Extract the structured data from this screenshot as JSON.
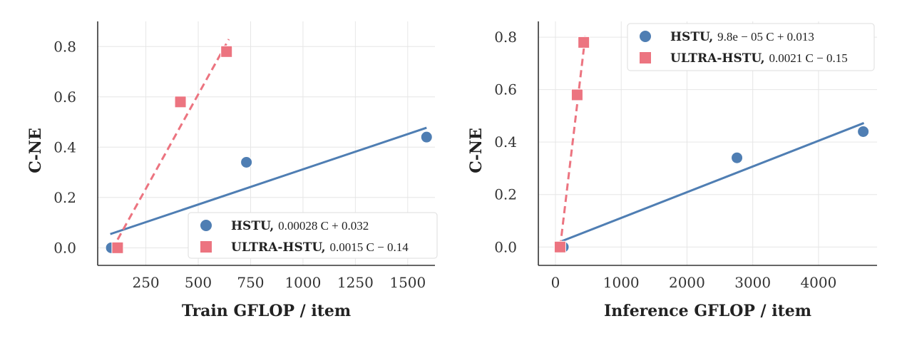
{
  "colors": {
    "hstu": "#4f7eb3",
    "ultra": "#ec7480"
  },
  "chart_data": [
    {
      "type": "scatter",
      "xlabel": "Train GFLOP / item",
      "ylabel": "C-NE",
      "xlim": [
        20,
        1630
      ],
      "ylim": [
        -0.07,
        0.9
      ],
      "xticks": [
        250,
        500,
        750,
        1000,
        1250,
        1500
      ],
      "yticks": [
        0.0,
        0.2,
        0.4,
        0.6,
        0.8
      ],
      "grid": true,
      "legend_position": "bottom-right",
      "series": [
        {
          "key": "hstu",
          "name": "HSTU,",
          "equation": "0.00028 C + 0.032",
          "marker": "circle",
          "points": [
            {
              "x": 85,
              "y": 0.0
            },
            {
              "x": 730,
              "y": 0.34
            },
            {
              "x": 1590,
              "y": 0.44
            }
          ],
          "fit": {
            "x_from": 80,
            "x_to": 1590,
            "slope": 0.00028,
            "intercept": 0.032,
            "style": "solid"
          }
        },
        {
          "key": "ultra",
          "name": "ULTRA-HSTU,",
          "equation": "0.0015 C − 0.14",
          "marker": "square",
          "points": [
            {
              "x": 115,
              "y": 0.0
            },
            {
              "x": 415,
              "y": 0.58
            },
            {
              "x": 635,
              "y": 0.78
            }
          ],
          "fit": {
            "x_from": 115,
            "x_to": 646,
            "slope": 0.0015,
            "intercept": -0.14,
            "style": "dashed"
          }
        }
      ]
    },
    {
      "type": "scatter",
      "xlabel": "Inference GFLOP / item",
      "ylabel": "C-NE",
      "xlim": [
        -260,
        4890
      ],
      "ylim": [
        -0.07,
        0.86
      ],
      "xticks": [
        0,
        1000,
        2000,
        3000,
        4000
      ],
      "yticks": [
        0.0,
        0.2,
        0.4,
        0.6,
        0.8
      ],
      "grid": true,
      "legend_position": "top-right",
      "series": [
        {
          "key": "hstu",
          "name": "HSTU,",
          "equation": "9.8e − 05 C + 0.013",
          "marker": "circle",
          "points": [
            {
              "x": 120,
              "y": 0.0
            },
            {
              "x": 2760,
              "y": 0.34
            },
            {
              "x": 4680,
              "y": 0.44
            }
          ],
          "fit": {
            "x_from": 90,
            "x_to": 4690,
            "slope": 9.8e-05,
            "intercept": 0.013,
            "style": "solid"
          }
        },
        {
          "key": "ultra",
          "name": "ULTRA-HSTU,",
          "equation": "0.0021 C − 0.15",
          "marker": "square",
          "points": [
            {
              "x": 70,
              "y": 0.0
            },
            {
              "x": 330,
              "y": 0.58
            },
            {
              "x": 430,
              "y": 0.78
            }
          ],
          "fit": {
            "x_from": 71,
            "x_to": 455,
            "slope": 0.0021,
            "intercept": -0.15,
            "style": "dashed"
          }
        }
      ]
    }
  ]
}
